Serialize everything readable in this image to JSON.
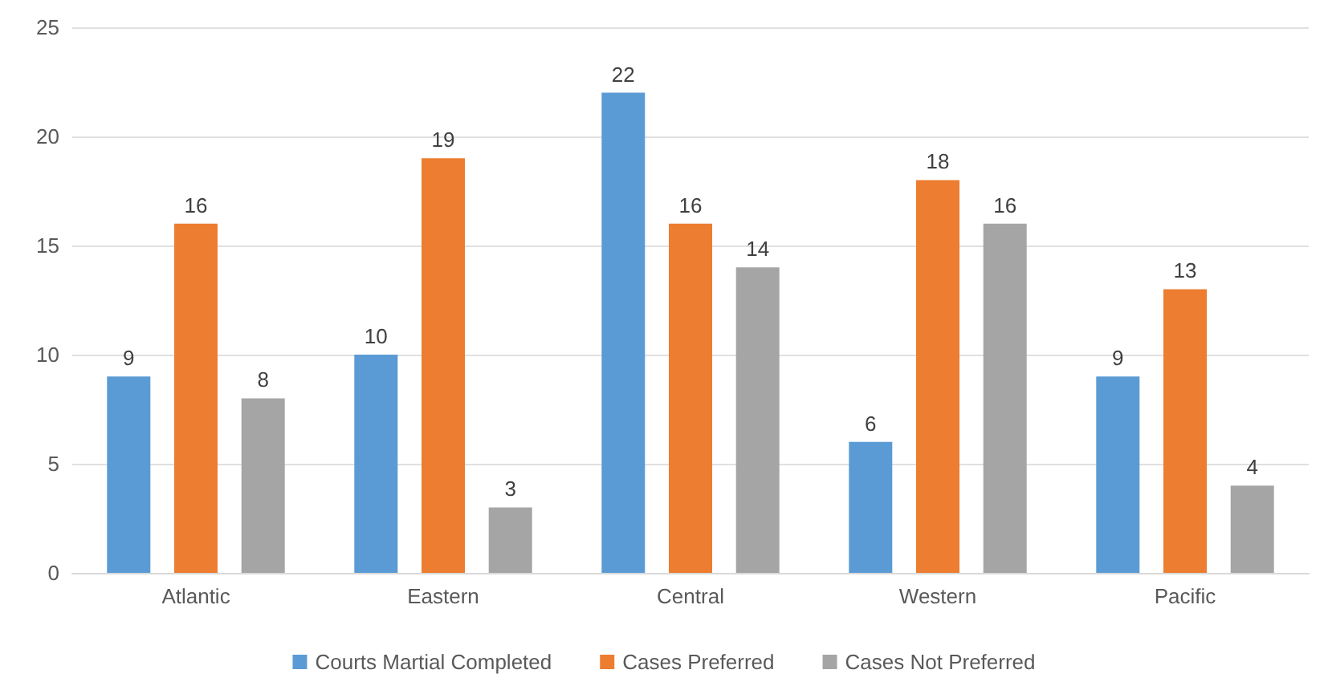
{
  "chart_data": {
    "type": "bar",
    "categories": [
      "Atlantic",
      "Eastern",
      "Central",
      "Western",
      "Pacific"
    ],
    "series": [
      {
        "name": "Courts Martial Completed",
        "color": "#5b9bd5",
        "values": [
          9,
          10,
          22,
          6,
          9
        ]
      },
      {
        "name": "Cases Preferred",
        "color": "#ed7d31",
        "values": [
          16,
          19,
          16,
          18,
          13
        ]
      },
      {
        "name": "Cases Not Preferred",
        "color": "#a5a5a5",
        "values": [
          8,
          3,
          14,
          16,
          4
        ]
      }
    ],
    "ylim": [
      0,
      25
    ],
    "yticks": [
      0,
      5,
      10,
      15,
      20,
      25
    ],
    "grid": "y",
    "legend": "bottom",
    "data_labels": true
  }
}
